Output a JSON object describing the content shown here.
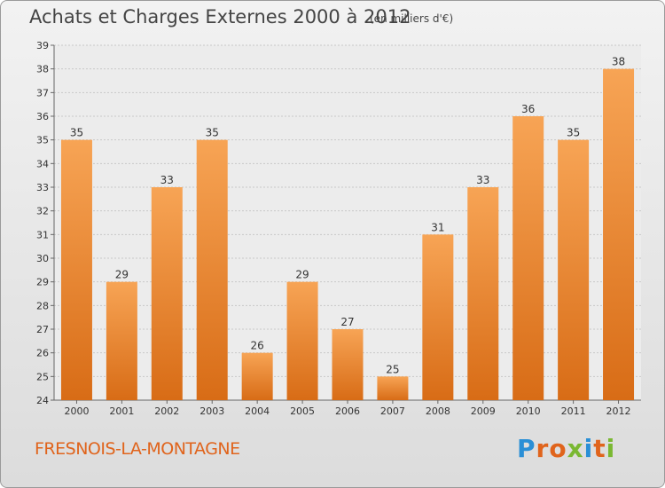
{
  "chart_data": {
    "type": "bar",
    "title": "Achats et Charges Externes 2000 à 2012",
    "subtitle": "(en milliers d'€)",
    "categories": [
      "2000",
      "2001",
      "2002",
      "2003",
      "2004",
      "2005",
      "2006",
      "2007",
      "2008",
      "2009",
      "2010",
      "2011",
      "2012"
    ],
    "values": [
      35,
      29,
      33,
      35,
      26,
      29,
      27,
      25,
      31,
      33,
      36,
      35,
      38
    ],
    "ylim": [
      24,
      39
    ],
    "yticks": [
      24,
      25,
      26,
      27,
      28,
      29,
      30,
      31,
      32,
      33,
      34,
      35,
      36,
      37,
      38,
      39
    ],
    "grid": true,
    "bar_color": "#e8822e"
  },
  "commune": "FRESNOIS-LA-MONTAGNE",
  "brand": {
    "letters": [
      "P",
      "r",
      "o",
      "x",
      "i",
      "t",
      "i"
    ],
    "colors": [
      "#2a8fd6",
      "#e0641c",
      "#e0641c",
      "#7ab832",
      "#2a8fd6",
      "#e0641c",
      "#7ab832"
    ]
  }
}
